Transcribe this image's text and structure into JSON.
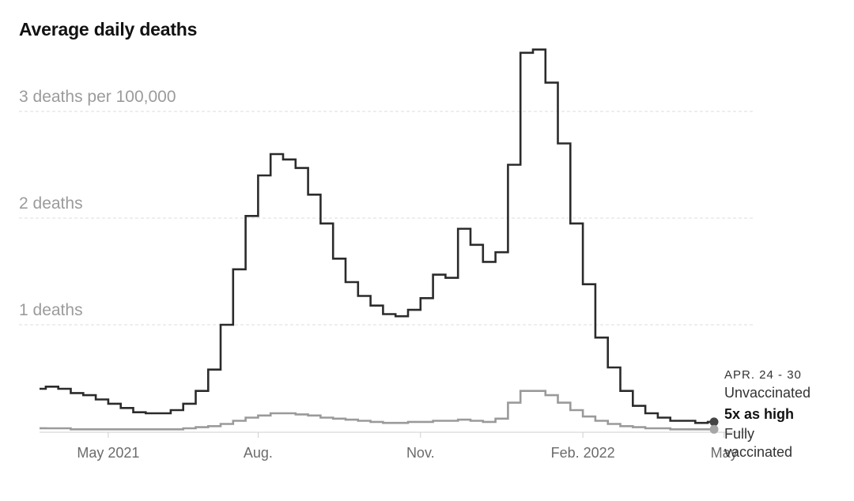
{
  "chart_data": {
    "type": "line",
    "title": "Average daily deaths",
    "y_unit_label": "3 deaths per 100,000",
    "yticks": [
      {
        "value": 1,
        "label": "1 deaths"
      },
      {
        "value": 2,
        "label": "2 deaths"
      },
      {
        "value": 3,
        "label": "3 deaths per 100,000"
      }
    ],
    "ylim": [
      0,
      3.6
    ],
    "xticks": [
      "May 2021",
      "Aug.",
      "Nov.",
      "Feb. 2022",
      "May"
    ],
    "x_unit": "week",
    "grid": true,
    "series": [
      {
        "name": "Unvaccinated",
        "color": "#2b2b2b",
        "step": true,
        "values": [
          0.4,
          0.42,
          0.4,
          0.36,
          0.34,
          0.3,
          0.26,
          0.22,
          0.18,
          0.17,
          0.17,
          0.2,
          0.26,
          0.38,
          0.58,
          1.0,
          1.52,
          2.02,
          2.4,
          2.6,
          2.55,
          2.47,
          2.22,
          1.95,
          1.62,
          1.4,
          1.27,
          1.18,
          1.1,
          1.08,
          1.14,
          1.25,
          1.47,
          1.44,
          1.9,
          1.75,
          1.59,
          1.68,
          2.5,
          3.55,
          3.58,
          3.27,
          2.7,
          1.95,
          1.38,
          0.88,
          0.6,
          0.38,
          0.24,
          0.17,
          0.13,
          0.1,
          0.1,
          0.08,
          0.09
        ]
      },
      {
        "name": "Fully vaccinated",
        "color": "#9a9a9a",
        "step": true,
        "values": [
          0.03,
          0.03,
          0.03,
          0.02,
          0.02,
          0.02,
          0.02,
          0.02,
          0.02,
          0.02,
          0.02,
          0.02,
          0.03,
          0.04,
          0.05,
          0.07,
          0.1,
          0.13,
          0.15,
          0.17,
          0.17,
          0.16,
          0.15,
          0.13,
          0.12,
          0.11,
          0.1,
          0.09,
          0.08,
          0.08,
          0.09,
          0.09,
          0.1,
          0.1,
          0.11,
          0.1,
          0.09,
          0.12,
          0.27,
          0.38,
          0.38,
          0.34,
          0.27,
          0.2,
          0.14,
          0.1,
          0.07,
          0.05,
          0.04,
          0.03,
          0.03,
          0.02,
          0.02,
          0.02,
          0.02
        ]
      }
    ],
    "annotation": {
      "period": "APR. 24 - 30",
      "top_label": "Unvaccinated",
      "ratio": "5x as high",
      "bottom_label_line1": "Fully",
      "bottom_label_line2": "vaccinated"
    }
  }
}
